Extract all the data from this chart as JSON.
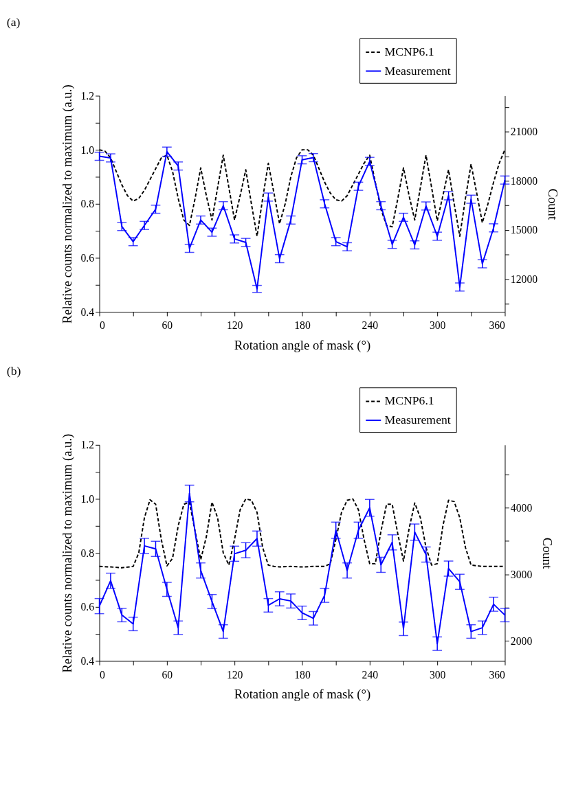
{
  "chart_data": [
    {
      "type": "line",
      "title": "(a)",
      "xlabel": "Rotation angle of mask (°)",
      "ylabel": "Relative counts normalized to maximum (a.u.)",
      "y2label": "Count",
      "xlim": [
        0,
        360
      ],
      "xticks": [
        0,
        {
          "value": 30,
          "label": null
        },
        60,
        {
          "value": 90,
          "label": null
        },
        120,
        {
          "value": 150,
          "label": null
        },
        180,
        {
          "value": 210,
          "label": null
        },
        240,
        {
          "value": 270,
          "label": null
        },
        300,
        {
          "value": 330,
          "label": null
        },
        360
      ],
      "ylim": [
        0.4,
        1.2
      ],
      "yticks": [
        0.4,
        {
          "value": 0.5,
          "label": null
        },
        0.6,
        {
          "value": 0.7,
          "label": null
        },
        0.8,
        {
          "value": 0.9,
          "label": null
        },
        {
          "value": 1,
          "label": "1.0"
        },
        {
          "value": 1.1,
          "label": null
        },
        1.2
      ],
      "y2lim": [
        10000,
        23200
      ],
      "y2ticks": [
        {
          "value": 10500,
          "label": null
        },
        12000,
        {
          "value": 13500,
          "label": null
        },
        15000,
        {
          "value": 16500,
          "label": null
        },
        18000,
        {
          "value": 19500,
          "label": null
        },
        21000,
        {
          "value": 22500,
          "label": null
        }
      ],
      "legend": "top right",
      "grid": false,
      "marker": "none",
      "series": [
        {
          "name": "MCNP6.1",
          "color": "#000000",
          "line_style": "dashed",
          "x": [
            0,
            5,
            10,
            15,
            20,
            25,
            30,
            35,
            40,
            45,
            50,
            55,
            60,
            65,
            70,
            75,
            80,
            85,
            90,
            95,
            100,
            105,
            110,
            115,
            120,
            125,
            130,
            135,
            140,
            145,
            150,
            155,
            160,
            165,
            170,
            175,
            180,
            185,
            190,
            195,
            200,
            205,
            210,
            215,
            220,
            225,
            230,
            235,
            240,
            245,
            250,
            255,
            260,
            265,
            270,
            275,
            280,
            285,
            290,
            295,
            300,
            305,
            310,
            315,
            320,
            325,
            330,
            335,
            340,
            345,
            350,
            355,
            360
          ],
          "values": [
            1.0,
            0.995,
            0.97,
            0.92,
            0.87,
            0.83,
            0.81,
            0.82,
            0.85,
            0.89,
            0.93,
            0.97,
            0.98,
            0.92,
            0.82,
            0.74,
            0.72,
            0.82,
            0.933,
            0.83,
            0.74,
            0.86,
            0.98,
            0.86,
            0.74,
            0.83,
            0.926,
            0.8,
            0.68,
            0.82,
            0.95,
            0.84,
            0.726,
            0.8,
            0.9,
            0.97,
            1.0,
            1.0,
            0.98,
            0.93,
            0.88,
            0.84,
            0.815,
            0.81,
            0.83,
            0.87,
            0.91,
            0.95,
            0.98,
            0.88,
            0.78,
            0.72,
            0.715,
            0.82,
            0.933,
            0.83,
            0.74,
            0.86,
            0.98,
            0.86,
            0.737,
            0.83,
            0.926,
            0.8,
            0.68,
            0.82,
            0.947,
            0.84,
            0.73,
            0.8,
            0.88,
            0.95,
            1.0
          ]
        },
        {
          "name": "Measurement",
          "color": "#0000ff",
          "line_style": "solid",
          "x": [
            0,
            10,
            20,
            30,
            40,
            50,
            60,
            70,
            80,
            90,
            100,
            110,
            120,
            130,
            140,
            150,
            160,
            170,
            180,
            190,
            200,
            210,
            220,
            230,
            240,
            250,
            260,
            270,
            280,
            290,
            300,
            310,
            320,
            330,
            340,
            350,
            360
          ],
          "values": [
            0.976,
            0.97,
            0.716,
            0.66,
            0.72,
            0.78,
            0.993,
            0.94,
            0.635,
            0.74,
            0.695,
            0.793,
            0.67,
            0.657,
            0.485,
            0.825,
            0.597,
            0.74,
            0.963,
            0.971,
            0.8,
            0.66,
            0.641,
            0.865,
            0.957,
            0.793,
            0.65,
            0.75,
            0.648,
            0.792,
            0.68,
            0.83,
            0.492,
            0.817,
            0.578,
            0.711,
            0.888
          ],
          "errors": [
            0.015,
            0.015,
            0.015,
            0.015,
            0.015,
            0.015,
            0.017,
            0.015,
            0.015,
            0.015,
            0.015,
            0.015,
            0.015,
            0.015,
            0.013,
            0.015,
            0.015,
            0.015,
            0.015,
            0.015,
            0.015,
            0.015,
            0.015,
            0.015,
            0.015,
            0.015,
            0.015,
            0.015,
            0.015,
            0.015,
            0.015,
            0.015,
            0.015,
            0.015,
            0.015,
            0.015,
            0.015
          ]
        }
      ]
    },
    {
      "type": "line",
      "title": "(b)",
      "xlabel": "Rotation angle of mask (°)",
      "ylabel": "Relative counts normalized to maximum (a.u.)",
      "y2label": "Count",
      "xlim": [
        0,
        360
      ],
      "xticks": [
        0,
        {
          "value": 30,
          "label": null
        },
        60,
        {
          "value": 90,
          "label": null
        },
        120,
        {
          "value": 150,
          "label": null
        },
        180,
        {
          "value": 210,
          "label": null
        },
        240,
        {
          "value": 270,
          "label": null
        },
        300,
        {
          "value": 330,
          "label": null
        },
        360
      ],
      "ylim": [
        0.4,
        1.2
      ],
      "yticks": [
        0.4,
        {
          "value": 0.5,
          "label": null
        },
        0.6,
        {
          "value": 0.7,
          "label": null
        },
        0.8,
        {
          "value": 0.9,
          "label": null
        },
        {
          "value": 1,
          "label": "1.0"
        },
        {
          "value": 1.1,
          "label": null
        },
        1.2
      ],
      "y2lim": [
        1700,
        4945
      ],
      "y2ticks": [
        2000,
        {
          "value": 2500,
          "label": null
        },
        3000,
        {
          "value": 3500,
          "label": null
        },
        4000,
        {
          "value": 4500,
          "label": null
        }
      ],
      "legend": "top right",
      "grid": false,
      "marker": "none",
      "series": [
        {
          "name": "MCNP6.1",
          "color": "#000000",
          "line_style": "dashed",
          "x": [
            0,
            10,
            20,
            30,
            35,
            40,
            45,
            50,
            55,
            60,
            65,
            70,
            75,
            80,
            85,
            90,
            95,
            100,
            105,
            110,
            115,
            120,
            125,
            130,
            135,
            140,
            145,
            150,
            155,
            160,
            170,
            180,
            190,
            200,
            205,
            210,
            215,
            220,
            225,
            230,
            235,
            240,
            245,
            250,
            255,
            260,
            265,
            270,
            275,
            280,
            285,
            290,
            295,
            300,
            305,
            310,
            315,
            320,
            325,
            330,
            340,
            350,
            360
          ],
          "values": [
            0.75,
            0.748,
            0.745,
            0.75,
            0.8,
            0.93,
            0.997,
            0.98,
            0.85,
            0.752,
            0.78,
            0.9,
            0.98,
            0.988,
            0.88,
            0.775,
            0.86,
            0.988,
            0.93,
            0.8,
            0.755,
            0.85,
            0.96,
            1.0,
            0.995,
            0.95,
            0.82,
            0.755,
            0.75,
            0.748,
            0.75,
            0.748,
            0.75,
            0.75,
            0.76,
            0.85,
            0.95,
            0.995,
            1.0,
            0.96,
            0.85,
            0.76,
            0.76,
            0.88,
            0.98,
            0.98,
            0.87,
            0.77,
            0.89,
            0.985,
            0.93,
            0.82,
            0.755,
            0.76,
            0.9,
            0.995,
            0.99,
            0.93,
            0.82,
            0.755,
            0.75,
            0.75,
            0.75
          ]
        },
        {
          "name": "Measurement",
          "color": "#0000ff",
          "line_style": "solid",
          "x": [
            0,
            10,
            20,
            30,
            40,
            50,
            60,
            70,
            80,
            90,
            100,
            110,
            120,
            130,
            140,
            150,
            160,
            170,
            180,
            190,
            200,
            210,
            220,
            230,
            240,
            250,
            260,
            270,
            280,
            290,
            300,
            310,
            320,
            330,
            340,
            350,
            360
          ],
          "values": [
            0.603,
            0.697,
            0.57,
            0.537,
            0.826,
            0.815,
            0.665,
            0.523,
            1.02,
            0.735,
            0.62,
            0.509,
            0.797,
            0.81,
            0.853,
            0.606,
            0.63,
            0.622,
            0.578,
            0.558,
            0.643,
            0.884,
            0.735,
            0.884,
            0.967,
            0.756,
            0.839,
            0.519,
            0.877,
            0.794,
            0.464,
            0.742,
            0.693,
            0.509,
            0.523,
            0.61,
            0.57
          ],
          "errors": [
            0.028,
            0.028,
            0.025,
            0.025,
            0.028,
            0.028,
            0.026,
            0.025,
            0.031,
            0.028,
            0.026,
            0.025,
            0.028,
            0.028,
            0.028,
            0.025,
            0.026,
            0.026,
            0.025,
            0.025,
            0.026,
            0.03,
            0.028,
            0.03,
            0.031,
            0.028,
            0.028,
            0.025,
            0.03,
            0.028,
            0.025,
            0.028,
            0.028,
            0.025,
            0.025,
            0.026,
            0.025
          ]
        }
      ]
    }
  ]
}
